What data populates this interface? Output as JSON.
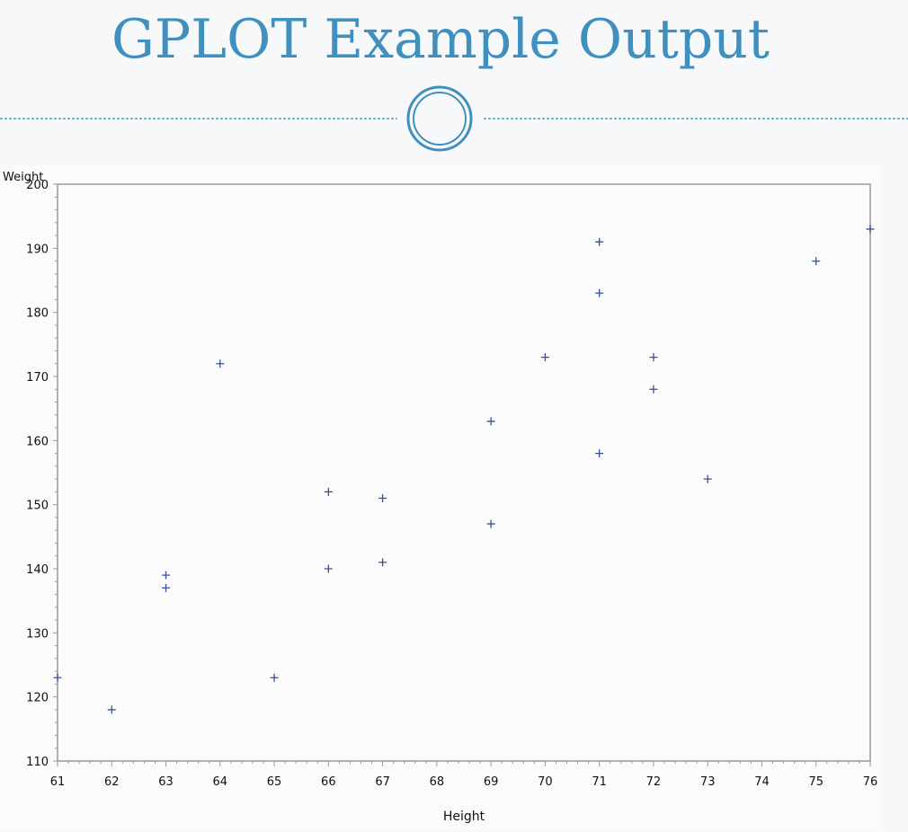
{
  "slide": {
    "title": "GPLOT Example Output"
  },
  "colors": {
    "title": "#3f8fbf",
    "marker": "#3a4f93",
    "frame": "#9a9a9a"
  },
  "chart_data": {
    "type": "scatter",
    "title": "",
    "xlabel": "Height",
    "ylabel": "Weight",
    "marker": "plus",
    "xlim": [
      61,
      76
    ],
    "ylim": [
      110,
      200
    ],
    "xticks": [
      61,
      62,
      63,
      64,
      65,
      66,
      67,
      68,
      69,
      70,
      71,
      72,
      73,
      74,
      75,
      76
    ],
    "yticks": [
      110,
      120,
      130,
      140,
      150,
      160,
      170,
      180,
      190,
      200
    ],
    "grid": false,
    "legend": "none",
    "series": [
      {
        "points": [
          [
            61,
            123
          ],
          [
            62,
            118
          ],
          [
            63,
            139
          ],
          [
            63,
            137
          ],
          [
            64,
            172
          ],
          [
            65,
            123
          ],
          [
            66,
            152
          ],
          [
            66,
            140
          ],
          [
            67,
            151
          ],
          [
            67,
            141
          ],
          [
            69,
            163
          ],
          [
            69,
            147
          ],
          [
            70,
            173
          ],
          [
            71,
            191
          ],
          [
            71,
            183
          ],
          [
            71,
            158
          ],
          [
            72,
            173
          ],
          [
            72,
            168
          ],
          [
            73,
            154
          ],
          [
            75,
            188
          ],
          [
            76,
            193
          ]
        ]
      }
    ]
  }
}
